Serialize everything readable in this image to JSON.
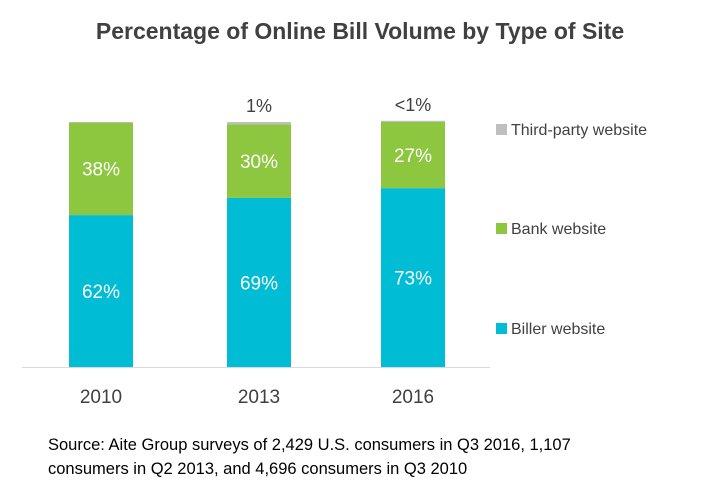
{
  "chart_data": {
    "type": "bar",
    "stacked": true,
    "title": "Percentage of Online Bill Volume by Type of Site",
    "categories": [
      "2010",
      "2013",
      "2016"
    ],
    "series": [
      {
        "name": "Biller website",
        "color": "#00BCD4",
        "values": [
          62,
          69,
          73
        ],
        "labels": [
          "62%",
          "69%",
          "73%"
        ]
      },
      {
        "name": "Bank website",
        "color": "#8DC63F",
        "values": [
          38,
          30,
          27
        ],
        "labels": [
          "38%",
          "30%",
          "27%"
        ]
      },
      {
        "name": "Third-party website",
        "color": "#BFBFBF",
        "values": [
          0,
          1,
          0.5
        ],
        "labels": [
          "",
          "1%",
          "<1%"
        ]
      }
    ],
    "ylim": [
      0,
      100
    ],
    "grid": false,
    "legend_position": "right"
  },
  "source": {
    "line1": "Source: Aite Group surveys of 2,429 U.S. consumers in Q3 2016, 1,107",
    "line2": "consumers in Q2 2013, and 4,696 consumers in Q3 2010"
  }
}
